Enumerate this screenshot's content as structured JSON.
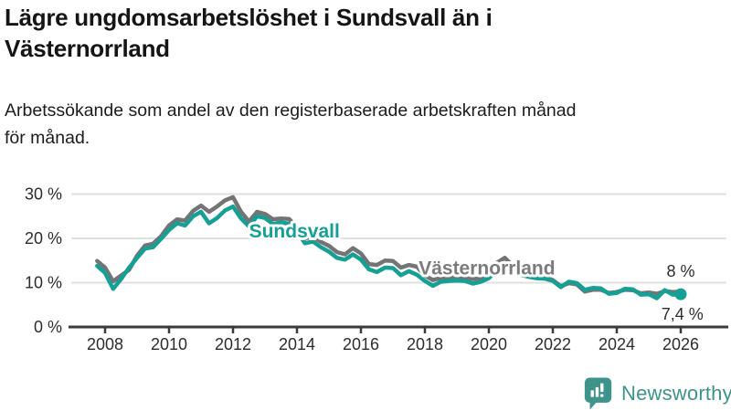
{
  "header": {
    "title_lines": [
      "Lägre ungdomsarbetslöshet i Sundsvall än i",
      "Västernorrland"
    ],
    "subtitle_lines": [
      "Arbetssökande som andel av den registerbaserade arbetskraften månad",
      "för månad."
    ]
  },
  "footer": {
    "brand": "Newsworthy",
    "logo_icon": "bar-chart-speech-bubble-icon",
    "brand_color": "#3e938b"
  },
  "chart_data": {
    "type": "line",
    "title": "Lägre ungdomsarbetslöshet i Sundsvall än i Västernorrland",
    "subtitle": "Arbetssökande som andel av den registerbaserade arbetskraften månad för månad.",
    "unit": "%",
    "grid": "horizontal",
    "legend": "inline-series-labels",
    "ylim": [
      0,
      33
    ],
    "xlim": [
      2007.6,
      2026.5
    ],
    "yticks": [
      {
        "value": 0,
        "label": "0 %"
      },
      {
        "value": 10,
        "label": "10 %"
      },
      {
        "value": 20,
        "label": "20 %"
      },
      {
        "value": 30,
        "label": "30 %"
      }
    ],
    "xticks": [
      {
        "value": 2008,
        "label": "2008"
      },
      {
        "value": 2010,
        "label": "2010"
      },
      {
        "value": 2012,
        "label": "2012"
      },
      {
        "value": 2014,
        "label": "2014"
      },
      {
        "value": 2016,
        "label": "2016"
      },
      {
        "value": 2018,
        "label": "2018"
      },
      {
        "value": 2020,
        "label": "2020"
      },
      {
        "value": 2022,
        "label": "2022"
      },
      {
        "value": 2024,
        "label": "2024"
      },
      {
        "value": 2026,
        "label": "2026"
      }
    ],
    "x": [
      2007.75,
      2008,
      2008.25,
      2008.5,
      2008.75,
      2009,
      2009.25,
      2009.5,
      2009.75,
      2010,
      2010.25,
      2010.5,
      2010.75,
      2011,
      2011.25,
      2011.5,
      2011.75,
      2012,
      2012.25,
      2012.5,
      2012.75,
      2013,
      2013.25,
      2013.5,
      2013.75,
      2014,
      2014.25,
      2014.5,
      2014.75,
      2015,
      2015.25,
      2015.5,
      2015.75,
      2016,
      2016.25,
      2016.5,
      2016.75,
      2017,
      2017.25,
      2017.5,
      2017.75,
      2018,
      2018.25,
      2018.5,
      2018.75,
      2019,
      2019.25,
      2019.5,
      2019.75,
      2020,
      2020.25,
      2020.5,
      2020.75,
      2021,
      2021.25,
      2021.5,
      2021.75,
      2022,
      2022.25,
      2022.5,
      2022.75,
      2023,
      2023.25,
      2023.5,
      2023.75,
      2024,
      2024.25,
      2024.5,
      2024.75,
      2025,
      2025.25,
      2025.5,
      2025.75,
      2026
    ],
    "series": [
      {
        "name": "Västernorrland",
        "color": "#747477",
        "values": [
          14.9,
          13.4,
          10.3,
          11.6,
          12.9,
          16.1,
          18.4,
          18.8,
          20.5,
          22.9,
          24.3,
          24.0,
          26.2,
          27.4,
          26.0,
          27.2,
          28.6,
          29.3,
          26.0,
          23.8,
          26.0,
          25.5,
          24.3,
          24.5,
          24.4,
          22.5,
          20.0,
          20.4,
          19.2,
          18.3,
          16.9,
          16.4,
          17.8,
          16.6,
          14.2,
          14.0,
          15.0,
          14.9,
          13.4,
          14.0,
          13.6,
          11.6,
          10.6,
          11.1,
          11.2,
          11.3,
          11.1,
          10.8,
          11.0,
          12.0,
          14.5,
          15.6,
          13.8,
          12.6,
          11.9,
          11.5,
          11.2,
          10.6,
          9.2,
          9.9,
          9.6,
          8.0,
          8.4,
          8.4,
          7.7,
          7.9,
          8.4,
          8.3,
          7.6,
          7.8,
          7.5,
          8.1,
          7.9,
          8.0
        ]
      },
      {
        "name": "Sundsvall",
        "color": "#14a094",
        "values": [
          13.8,
          12.2,
          8.6,
          10.8,
          13.4,
          15.6,
          17.7,
          18.0,
          19.9,
          21.9,
          23.4,
          22.9,
          25.0,
          26.0,
          23.4,
          24.6,
          26.3,
          27.2,
          24.5,
          22.7,
          25.0,
          24.6,
          23.2,
          23.6,
          23.3,
          21.5,
          18.9,
          19.3,
          18.0,
          17.0,
          15.6,
          15.2,
          16.4,
          15.2,
          13.0,
          12.4,
          13.4,
          13.3,
          11.7,
          12.6,
          11.8,
          10.4,
          9.3,
          10.2,
          10.4,
          10.5,
          10.4,
          9.8,
          10.2,
          11.0,
          13.0,
          13.6,
          12.5,
          11.8,
          11.3,
          11.0,
          10.9,
          10.4,
          9.0,
          10.2,
          9.9,
          8.4,
          8.8,
          8.7,
          7.5,
          7.7,
          8.6,
          8.5,
          7.3,
          7.4,
          6.5,
          8.3,
          7.3,
          7.4
        ]
      }
    ],
    "series_labels": [
      {
        "text": "Sundsvall",
        "year": 2013.92,
        "value": 20.2,
        "color": "#14a094"
      },
      {
        "text": "Västernorrland",
        "year": 2019.94,
        "value": 11.9,
        "color": "#7b7b7e"
      }
    ],
    "end_labels": [
      {
        "text": "8 %",
        "year": 2026.0,
        "value": 11.3
      },
      {
        "text": "7,4 %",
        "year": 2026.05,
        "value": 1.6
      }
    ],
    "end_dot": {
      "series": "Sundsvall",
      "year": 2026.0,
      "value": 7.4,
      "color": "#14a094"
    }
  }
}
